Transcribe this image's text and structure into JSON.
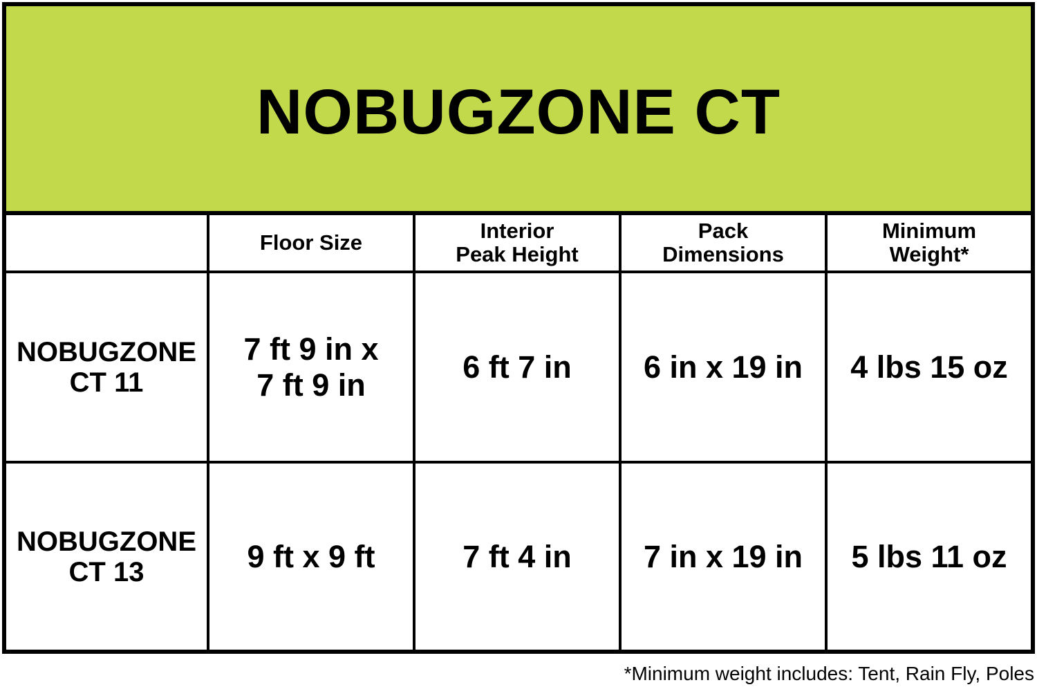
{
  "title": "NOBUGZONE CT",
  "colors": {
    "banner": "#c1d94b",
    "border": "#000000"
  },
  "columns": [
    "",
    "Floor Size",
    "Interior\nPeak Height",
    "Pack\nDimensions",
    "Minimum\nWeight*"
  ],
  "rows": [
    {
      "model": "NOBUGZONE\nCT 11",
      "floor_size": "7 ft 9 in x\n7 ft 9 in",
      "peak_height": "6 ft 7 in",
      "pack_dimensions": "6 in x 19 in",
      "min_weight": "4 lbs 15 oz"
    },
    {
      "model": "NOBUGZONE\nCT 13",
      "floor_size": "9 ft x 9 ft",
      "peak_height": "7 ft 4 in",
      "pack_dimensions": "7 in x 19 in",
      "min_weight": "5 lbs 11 oz"
    }
  ],
  "footnote": "*Minimum weight includes: Tent, Rain Fly, Poles"
}
